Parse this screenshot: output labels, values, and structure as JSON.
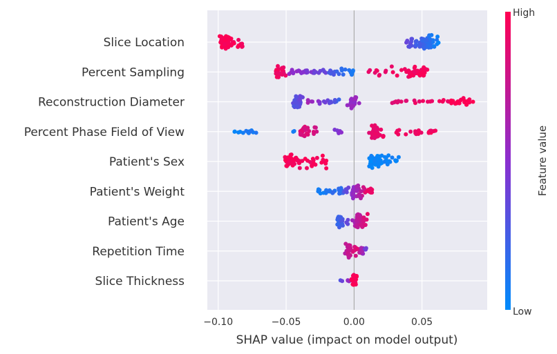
{
  "chart_data": {
    "type": "scatter",
    "subtype": "shap-beeswarm",
    "xlabel": "SHAP value (impact on model output)",
    "xlim": [
      -0.108,
      0.098
    ],
    "xticks": [
      -0.1,
      -0.05,
      0.0,
      0.05
    ],
    "xtick_labels": [
      "−0.10",
      "−0.05",
      "0.00",
      "0.05"
    ],
    "grid": true,
    "colorbar": {
      "title": "Feature value",
      "high_label": "High",
      "low_label": "Low",
      "high_color": "#ff0052",
      "low_color": "#008bfb"
    },
    "features": [
      {
        "name": "Slice Location",
        "clusters": [
          {
            "x0": -0.099,
            "x1": -0.082,
            "v0": 1.0,
            "v1": 0.95,
            "n": 70,
            "spread": 1.0,
            "peak": -0.095
          },
          {
            "x0": 0.038,
            "x1": 0.063,
            "v0": 0.35,
            "v1": 0.05,
            "n": 80,
            "spread": 1.0,
            "peak": 0.055
          }
        ]
      },
      {
        "name": "Percent Sampling",
        "clusters": [
          {
            "x0": -0.059,
            "x1": -0.05,
            "v0": 0.95,
            "v1": 0.9,
            "n": 24,
            "spread": 0.9,
            "peak": -0.056
          },
          {
            "x0": -0.048,
            "x1": -0.02,
            "v0": 0.55,
            "v1": 0.35,
            "n": 30,
            "spread": 0.35
          },
          {
            "x0": -0.02,
            "x1": 0.0,
            "v0": 0.3,
            "v1": 0.1,
            "n": 20,
            "spread": 0.5
          },
          {
            "x0": 0.01,
            "x1": 0.055,
            "v0": 0.92,
            "v1": 0.96,
            "n": 55,
            "spread": 0.8,
            "peak": 0.045
          }
        ]
      },
      {
        "name": "Reconstruction Diameter",
        "clusters": [
          {
            "x0": -0.045,
            "x1": -0.035,
            "v0": 0.3,
            "v1": 0.4,
            "n": 30,
            "spread": 1.0,
            "peak": -0.041
          },
          {
            "x0": -0.034,
            "x1": -0.01,
            "v0": 0.6,
            "v1": 0.2,
            "n": 18,
            "spread": 0.35
          },
          {
            "x0": -0.008,
            "x1": 0.004,
            "v0": 0.55,
            "v1": 0.55,
            "n": 28,
            "spread": 1.0,
            "peak": -0.001
          },
          {
            "x0": 0.025,
            "x1": 0.07,
            "v0": 0.85,
            "v1": 0.95,
            "n": 22,
            "spread": 0.3
          },
          {
            "x0": 0.07,
            "x1": 0.088,
            "v0": 1.0,
            "v1": 1.0,
            "n": 20,
            "spread": 0.7,
            "peak": 0.078
          }
        ]
      },
      {
        "name": "Percent Phase Field of View",
        "clusters": [
          {
            "x0": -0.088,
            "x1": -0.072,
            "v0": 0.05,
            "v1": 0.1,
            "n": 16,
            "spread": 0.3
          },
          {
            "x0": -0.045,
            "x1": -0.044,
            "v0": 0.1,
            "v1": 0.1,
            "n": 2,
            "spread": 0.3
          },
          {
            "x0": -0.04,
            "x1": -0.027,
            "v0": 0.85,
            "v1": 0.8,
            "n": 26,
            "spread": 0.9,
            "peak": -0.037
          },
          {
            "x0": -0.015,
            "x1": -0.009,
            "v0": 0.4,
            "v1": 0.5,
            "n": 7,
            "spread": 0.3
          },
          {
            "x0": 0.008,
            "x1": 0.022,
            "v0": 0.85,
            "v1": 0.95,
            "n": 35,
            "spread": 1.0,
            "peak": 0.015
          },
          {
            "x0": 0.03,
            "x1": 0.061,
            "v0": 0.92,
            "v1": 0.95,
            "n": 22,
            "spread": 0.4
          }
        ]
      },
      {
        "name": "Patient's Sex",
        "clusters": [
          {
            "x0": -0.052,
            "x1": -0.019,
            "v0": 0.97,
            "v1": 0.95,
            "n": 60,
            "spread": 1.0,
            "peak": -0.046
          },
          {
            "x0": 0.011,
            "x1": 0.034,
            "v0": 0.02,
            "v1": 0.05,
            "n": 60,
            "spread": 1.0,
            "peak": 0.015
          }
        ]
      },
      {
        "name": "Patient's Weight",
        "clusters": [
          {
            "x0": -0.027,
            "x1": -0.008,
            "v0": 0.05,
            "v1": 0.2,
            "n": 26,
            "spread": 0.5
          },
          {
            "x0": -0.008,
            "x1": 0.008,
            "v0": 0.3,
            "v1": 0.8,
            "n": 45,
            "spread": 1.0,
            "peak": 0.001
          },
          {
            "x0": 0.008,
            "x1": 0.014,
            "v0": 0.9,
            "v1": 0.95,
            "n": 10,
            "spread": 0.6
          }
        ]
      },
      {
        "name": "Patient's Age",
        "clusters": [
          {
            "x0": -0.013,
            "x1": -0.003,
            "v0": 0.2,
            "v1": 0.4,
            "n": 30,
            "spread": 1.0,
            "peak": -0.01
          },
          {
            "x0": -0.002,
            "x1": 0.011,
            "v0": 0.6,
            "v1": 0.9,
            "n": 45,
            "spread": 1.0,
            "peak": 0.004
          }
        ]
      },
      {
        "name": "Repetition Time",
        "clusters": [
          {
            "x0": -0.007,
            "x1": 0.002,
            "v0": 0.7,
            "v1": 0.85,
            "n": 40,
            "spread": 1.0,
            "peak": -0.004
          },
          {
            "x0": 0.002,
            "x1": 0.01,
            "v0": 0.9,
            "v1": 0.3,
            "n": 14,
            "spread": 0.5
          }
        ]
      },
      {
        "name": "Slice Thickness",
        "clusters": [
          {
            "x0": -0.01,
            "x1": -0.003,
            "v0": 0.3,
            "v1": 0.6,
            "n": 6,
            "spread": 0.15
          },
          {
            "x0": -0.002,
            "x1": 0.002,
            "v0": 0.95,
            "v1": 0.98,
            "n": 35,
            "spread": 1.0,
            "peak": 0.0
          }
        ]
      }
    ]
  }
}
